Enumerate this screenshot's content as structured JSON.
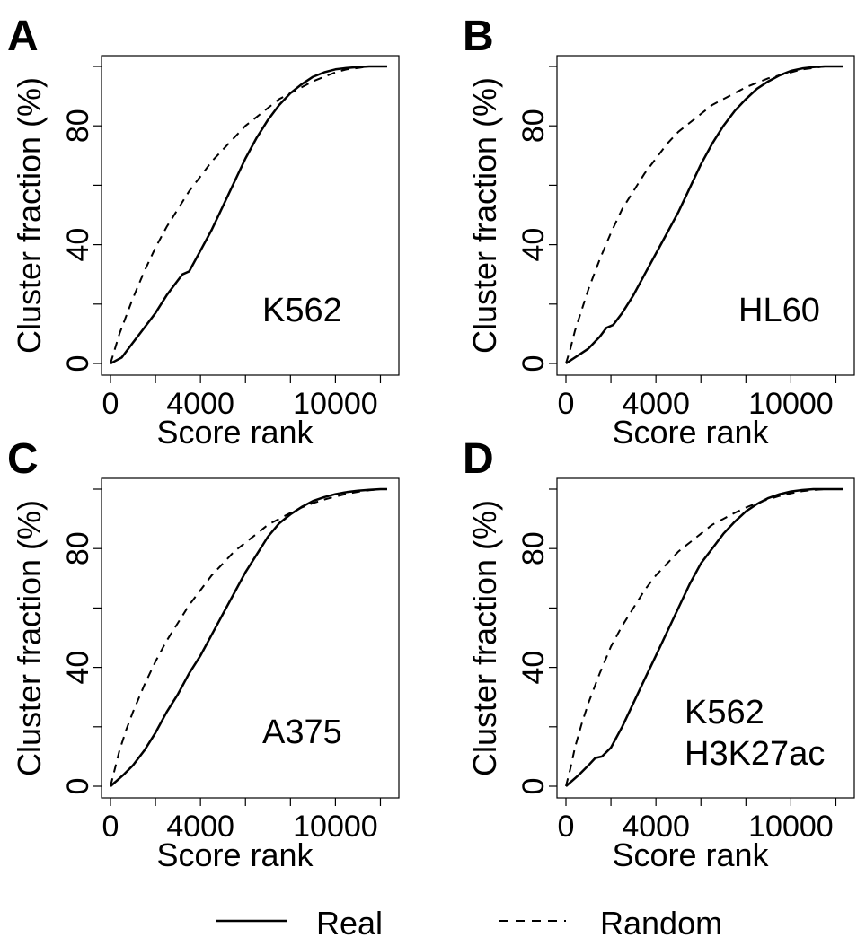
{
  "legend": {
    "placement": "bottom",
    "items": [
      {
        "label": "Real",
        "style": "solid"
      },
      {
        "label": "Random",
        "style": "dashed"
      }
    ]
  },
  "chart_data": [
    {
      "type": "line",
      "panel_letter": "A",
      "annotation": [
        "K562"
      ],
      "xlabel": "Score rank",
      "ylabel": "Cluster fraction (%)",
      "xlim": [
        0,
        12500
      ],
      "ylim": [
        0,
        100
      ],
      "x_ticks": [
        0,
        2000,
        4000,
        6000,
        8000,
        10000,
        12000
      ],
      "x_tick_labels": [
        "0",
        "",
        "4000",
        "",
        "",
        "10000",
        ""
      ],
      "y_ticks": [
        0,
        20,
        40,
        60,
        80,
        100
      ],
      "y_tick_labels": [
        "0",
        "",
        "40",
        "",
        "80",
        ""
      ],
      "grid": false,
      "series": [
        {
          "name": "Real",
          "style": "solid",
          "x": [
            0,
            500,
            1000,
            1500,
            2000,
            2500,
            3000,
            3200,
            3500,
            4000,
            4500,
            5000,
            5500,
            6000,
            6500,
            7000,
            7500,
            8000,
            8500,
            9000,
            9500,
            10000,
            10500,
            11000,
            11500,
            12000,
            12300
          ],
          "y": [
            0,
            2,
            7,
            12,
            17,
            23,
            28,
            30,
            31,
            38,
            45,
            53,
            61,
            69,
            76,
            82,
            87,
            91,
            94,
            96.5,
            98,
            99,
            99.5,
            99.8,
            100,
            100,
            100
          ]
        },
        {
          "name": "Random",
          "style": "dashed",
          "x": [
            0,
            200,
            400,
            700,
            1000,
            1500,
            2000,
            2500,
            3000,
            3500,
            4000,
            4500,
            5000,
            5500,
            6000,
            6500,
            7000,
            7500,
            8000,
            8500,
            9000,
            9500,
            10000,
            10500,
            11000,
            11500,
            12000,
            12300
          ],
          "y": [
            0,
            5,
            10,
            16,
            22,
            31,
            39,
            46,
            52,
            58,
            63,
            68,
            72,
            76,
            80,
            83,
            86,
            89,
            91,
            93,
            95,
            96.5,
            98,
            99,
            99.5,
            100,
            100,
            100
          ]
        }
      ]
    },
    {
      "type": "line",
      "panel_letter": "B",
      "annotation": [
        "HL60"
      ],
      "xlabel": "Score rank",
      "ylabel": "Cluster fraction (%)",
      "xlim": [
        0,
        12500
      ],
      "ylim": [
        0,
        100
      ],
      "x_ticks": [
        0,
        2000,
        4000,
        6000,
        8000,
        10000,
        12000
      ],
      "x_tick_labels": [
        "0",
        "",
        "4000",
        "",
        "",
        "10000",
        ""
      ],
      "y_ticks": [
        0,
        20,
        40,
        60,
        80,
        100
      ],
      "y_tick_labels": [
        "0",
        "",
        "40",
        "",
        "80",
        ""
      ],
      "grid": false,
      "series": [
        {
          "name": "Real",
          "style": "solid",
          "x": [
            0,
            300,
            600,
            1000,
            1500,
            1800,
            2100,
            2500,
            3000,
            3500,
            4000,
            4500,
            5000,
            5500,
            6000,
            6500,
            7000,
            7500,
            8000,
            8500,
            9000,
            9500,
            10000,
            10500,
            11000,
            11500,
            12000,
            12300
          ],
          "y": [
            0,
            1.5,
            3,
            5,
            9,
            12,
            13,
            17,
            23,
            30,
            37,
            44,
            51,
            59,
            67,
            74,
            80,
            85,
            89,
            92.5,
            95,
            97,
            98.5,
            99.3,
            99.8,
            100,
            100,
            100
          ]
        },
        {
          "name": "Random",
          "style": "dashed",
          "x": [
            0,
            200,
            400,
            700,
            1000,
            1500,
            2000,
            2500,
            3000,
            3500,
            4000,
            4500,
            5000,
            5500,
            6000,
            6500,
            7000,
            7500,
            8000,
            8500,
            9000,
            9500,
            10000,
            10500,
            11000,
            11500,
            12000,
            12300
          ],
          "y": [
            0,
            5,
            11,
            18,
            25,
            35,
            44,
            52,
            58,
            64,
            69,
            74,
            78,
            81,
            84,
            87,
            89,
            91,
            93,
            94.5,
            96,
            97,
            98,
            99,
            99.5,
            100,
            100,
            100
          ]
        }
      ]
    },
    {
      "type": "line",
      "panel_letter": "C",
      "annotation": [
        "A375"
      ],
      "xlabel": "Score rank",
      "ylabel": "Cluster fraction (%)",
      "xlim": [
        0,
        12500
      ],
      "ylim": [
        0,
        100
      ],
      "x_ticks": [
        0,
        2000,
        4000,
        6000,
        8000,
        10000,
        12000
      ],
      "x_tick_labels": [
        "0",
        "",
        "4000",
        "",
        "",
        "10000",
        ""
      ],
      "y_ticks": [
        0,
        20,
        40,
        60,
        80,
        100
      ],
      "y_tick_labels": [
        "0",
        "",
        "40",
        "",
        "80",
        ""
      ],
      "grid": false,
      "series": [
        {
          "name": "Real",
          "style": "solid",
          "x": [
            0,
            300,
            600,
            1000,
            1500,
            2000,
            2500,
            3000,
            3500,
            4000,
            4500,
            5000,
            5500,
            6000,
            6500,
            7000,
            7500,
            8000,
            8500,
            9000,
            9500,
            10000,
            10500,
            11000,
            11500,
            12000,
            12300
          ],
          "y": [
            0,
            2,
            4,
            7,
            12,
            18,
            25,
            31,
            38,
            44,
            51,
            58,
            65,
            72,
            78,
            84,
            88.5,
            91.5,
            94,
            96,
            97.3,
            98.3,
            99,
            99.5,
            99.8,
            100,
            100
          ]
        },
        {
          "name": "Random",
          "style": "dashed",
          "x": [
            0,
            200,
            400,
            700,
            1000,
            1500,
            2000,
            2500,
            3000,
            3500,
            4000,
            4500,
            5000,
            5500,
            6000,
            6500,
            7000,
            7500,
            8000,
            8500,
            9000,
            9500,
            10000,
            10500,
            11000,
            11500,
            12000,
            12300
          ],
          "y": [
            0,
            6,
            12,
            19,
            25,
            34,
            42,
            49,
            55,
            61,
            66,
            71,
            75,
            79,
            82,
            85,
            88,
            90,
            92,
            93.8,
            95.3,
            96.5,
            97.5,
            98.4,
            99.1,
            99.6,
            100,
            100
          ]
        }
      ]
    },
    {
      "type": "line",
      "panel_letter": "D",
      "annotation": [
        "K562",
        "H3K27ac"
      ],
      "xlabel": "Score rank",
      "ylabel": "Cluster fraction (%)",
      "xlim": [
        0,
        12500
      ],
      "ylim": [
        0,
        100
      ],
      "x_ticks": [
        0,
        2000,
        4000,
        6000,
        8000,
        10000,
        12000
      ],
      "x_tick_labels": [
        "0",
        "",
        "4000",
        "",
        "",
        "10000",
        ""
      ],
      "y_ticks": [
        0,
        20,
        40,
        60,
        80,
        100
      ],
      "y_tick_labels": [
        "0",
        "",
        "40",
        "",
        "80",
        ""
      ],
      "grid": false,
      "series": [
        {
          "name": "Real",
          "style": "solid",
          "x": [
            0,
            300,
            600,
            1000,
            1300,
            1600,
            2000,
            2500,
            3000,
            3500,
            4000,
            4500,
            5000,
            5500,
            6000,
            6500,
            7000,
            7500,
            8000,
            8500,
            9000,
            9500,
            10000,
            10500,
            11000,
            11500,
            12000,
            12300
          ],
          "y": [
            0,
            2,
            4,
            7,
            9.5,
            10,
            13,
            20,
            28,
            36,
            44,
            52,
            60,
            68,
            75,
            80,
            85,
            89,
            92.5,
            95,
            97,
            98.3,
            99.2,
            99.7,
            100,
            100,
            100,
            100
          ]
        },
        {
          "name": "Random",
          "style": "dashed",
          "x": [
            0,
            200,
            400,
            700,
            1000,
            1500,
            2000,
            2500,
            3000,
            3500,
            4000,
            4500,
            5000,
            5500,
            6000,
            6500,
            7000,
            7500,
            8000,
            8500,
            9000,
            9500,
            10000,
            10500,
            11000,
            11500,
            12000,
            12300
          ],
          "y": [
            0,
            6,
            13,
            21,
            28,
            38,
            47,
            54,
            60,
            66,
            71,
            75,
            79,
            82,
            85,
            88,
            90,
            92,
            93.8,
            95.3,
            96.6,
            97.7,
            98.6,
            99.3,
            99.7,
            100,
            100,
            100
          ]
        }
      ]
    }
  ]
}
